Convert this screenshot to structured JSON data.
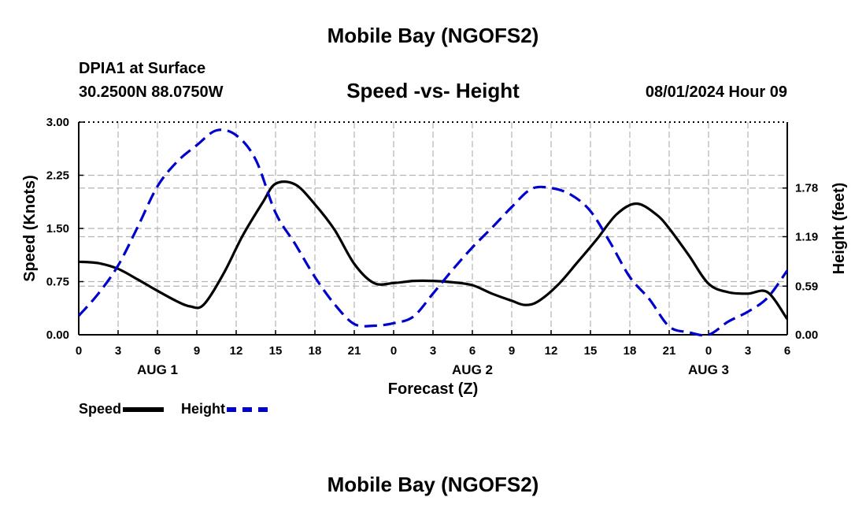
{
  "header": {
    "main_title": "Mobile Bay (NGOFS2)",
    "station": "DPIA1 at Surface",
    "coordinates": "30.2500N  88.0750W",
    "plot_title": "Speed -vs- Height",
    "datetime": "08/01/2024 Hour 09"
  },
  "footer": {
    "main_title": "Mobile Bay (NGOFS2)"
  },
  "legend": {
    "speed_label": "Speed",
    "height_label": "Height"
  },
  "colors": {
    "speed": "#000000",
    "height": "#0000cc",
    "grid": "#b4b4b4"
  },
  "chart_data": {
    "type": "line",
    "title": "Speed -vs- Height",
    "xlabel": "Forecast (Z)",
    "ylabel": "Speed (Knots)",
    "y2label": "Height (feet)",
    "x_ticks": [
      "0",
      "3",
      "6",
      "9",
      "12",
      "15",
      "18",
      "21",
      "0",
      "3",
      "6",
      "9",
      "12",
      "15",
      "18",
      "21",
      "0",
      "3",
      "6"
    ],
    "date_labels": [
      {
        "label": "AUG 1",
        "at_tick": 2
      },
      {
        "label": "AUG 2",
        "at_tick": 10
      },
      {
        "label": "AUG 3",
        "at_tick": 16
      }
    ],
    "x_range_hours": [
      0,
      54
    ],
    "ylim": [
      0,
      3
    ],
    "y_ticks": [
      "0.00",
      "0.75",
      "1.50",
      "2.25",
      "3.00"
    ],
    "y2lim": [
      0,
      2.58
    ],
    "y2_ticks": [
      "0.00",
      "0.59",
      "1.19",
      "1.78"
    ],
    "grid": true,
    "legend_position": "bottom-left",
    "series": [
      {
        "name": "Speed",
        "axis": "left",
        "style": "solid",
        "x": [
          0,
          1.5,
          3,
          4.5,
          6,
          7.5,
          8.5,
          9.5,
          11,
          12.5,
          14,
          15,
          16.5,
          18,
          19.5,
          21,
          22.5,
          24,
          25.5,
          27,
          28.5,
          30,
          31.5,
          33,
          34,
          35,
          36.5,
          38,
          39.5,
          41,
          42.5,
          44,
          45,
          46.5,
          48,
          49.5,
          51,
          52.5,
          54
        ],
        "values": [
          1.03,
          1.01,
          0.93,
          0.78,
          0.62,
          0.47,
          0.4,
          0.42,
          0.85,
          1.4,
          1.86,
          2.13,
          2.12,
          1.84,
          1.48,
          1.0,
          0.73,
          0.73,
          0.76,
          0.76,
          0.74,
          0.7,
          0.58,
          0.48,
          0.42,
          0.47,
          0.7,
          1.02,
          1.35,
          1.7,
          1.85,
          1.7,
          1.5,
          1.12,
          0.72,
          0.6,
          0.58,
          0.6,
          0.22
        ]
      },
      {
        "name": "Height",
        "axis": "right",
        "style": "dashed",
        "x": [
          0,
          1.5,
          3,
          4.5,
          6,
          7.5,
          9,
          10.5,
          12,
          13.5,
          15,
          16.5,
          18,
          19.5,
          21,
          22.5,
          24,
          25.5,
          27,
          28.5,
          30,
          31.5,
          33,
          34.5,
          36,
          37.5,
          39,
          40.5,
          42,
          43.5,
          45,
          46.5,
          48,
          49.5,
          51,
          52.5,
          54
        ],
        "values": [
          0.23,
          0.5,
          0.84,
          1.31,
          1.8,
          2.1,
          2.3,
          2.48,
          2.42,
          2.12,
          1.48,
          1.1,
          0.7,
          0.37,
          0.13,
          0.11,
          0.14,
          0.22,
          0.5,
          0.79,
          1.06,
          1.3,
          1.55,
          1.77,
          1.78,
          1.7,
          1.5,
          1.12,
          0.7,
          0.43,
          0.1,
          0.03,
          0.0,
          0.16,
          0.28,
          0.45,
          0.78
        ]
      }
    ]
  }
}
